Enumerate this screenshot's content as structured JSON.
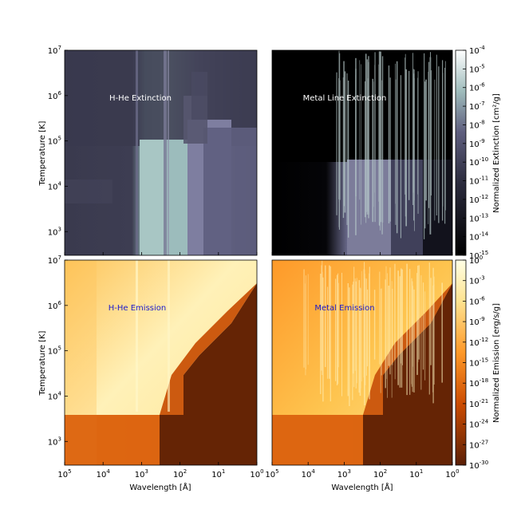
{
  "chart_data": [
    {
      "type": "heatmap",
      "panel": "top-left",
      "title": "H-He Extinction",
      "title_color": "#ffffff",
      "colormap": "bone",
      "x_scale": "log",
      "y_scale": "log",
      "xlim_angstrom": [
        100000,
        1
      ],
      "ylim_kelvin": [
        300,
        10000000
      ],
      "ylabel": "Temperature [K]",
      "x_ticks": [
        "10^5",
        "10^4",
        "10^3",
        "10^2",
        "10^1",
        "10^0"
      ],
      "y_ticks": [
        "10^7",
        "10^6",
        "10^5",
        "10^4",
        "10^3"
      ]
    },
    {
      "type": "heatmap",
      "panel": "top-right",
      "title": "Metal Line Extinction",
      "title_color": "#ffffff",
      "colormap": "bone",
      "x_scale": "log",
      "y_scale": "log",
      "xlim_angstrom": [
        100000,
        1
      ],
      "ylim_kelvin": [
        300,
        10000000
      ]
    },
    {
      "type": "heatmap",
      "panel": "bottom-left",
      "title": "H-He Emission",
      "title_color": "#1a1acc",
      "colormap": "YlOrBr",
      "x_scale": "log",
      "y_scale": "log",
      "xlim_angstrom": [
        100000,
        1
      ],
      "ylim_kelvin": [
        300,
        10000000
      ],
      "xlabel": "Wavelength [Å]",
      "ylabel": "Temperature [K]",
      "x_ticks": [
        "10^5",
        "10^4",
        "10^3",
        "10^2",
        "10^1",
        "10^0"
      ],
      "y_ticks": [
        "10^7",
        "10^6",
        "10^5",
        "10^4",
        "10^3"
      ]
    },
    {
      "type": "heatmap",
      "panel": "bottom-right",
      "title": "Metal Emission",
      "title_color": "#1a1acc",
      "colormap": "YlOrBr",
      "x_scale": "log",
      "y_scale": "log",
      "xlim_angstrom": [
        100000,
        1
      ],
      "ylim_kelvin": [
        300,
        10000000
      ],
      "xlabel": "Wavelength [Å]",
      "x_ticks": [
        "10^5",
        "10^4",
        "10^3",
        "10^2",
        "10^1",
        "10^0"
      ]
    }
  ],
  "colorbars": {
    "extinction": {
      "label": "Normalized Extinction [cm²/g]",
      "ticks": [
        "10^-4",
        "10^-5",
        "10^-6",
        "10^-7",
        "10^-8",
        "10^-9",
        "10^-10",
        "10^-11",
        "10^-12",
        "10^-13",
        "10^-14",
        "10^-15"
      ],
      "colormap": "bone"
    },
    "emission": {
      "label": "Normalized Emission [erg/s/g]",
      "ticks": [
        "10^0",
        "10^-3",
        "10^-6",
        "10^-9",
        "10^-12",
        "10^-15",
        "10^-18",
        "10^-21",
        "10^-24",
        "10^-27",
        "10^-30"
      ],
      "colormap": "YlOrBr"
    }
  },
  "colors": {
    "bone_dark": "#000000",
    "bone_mid": "#3b3b55",
    "bone_light": "#ffffff",
    "ylorbr_dark": "#662506",
    "ylorbr_mid": "#fe9929",
    "ylorbr_light": "#ffffe5"
  }
}
